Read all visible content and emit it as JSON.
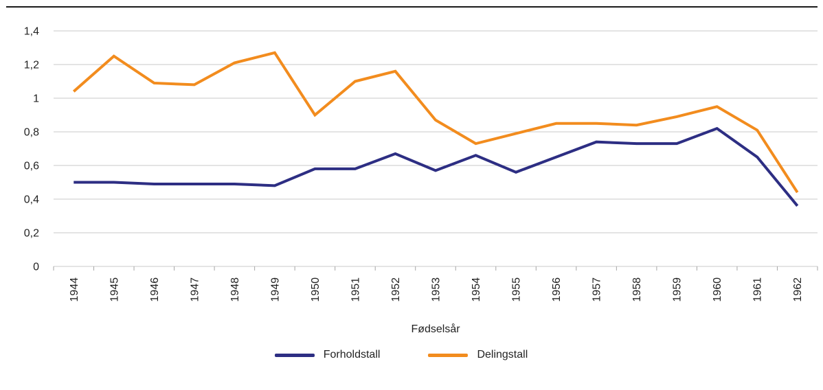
{
  "chart_data": {
    "type": "line",
    "x": [
      1944,
      1945,
      1946,
      1947,
      1948,
      1949,
      1950,
      1951,
      1952,
      1953,
      1954,
      1955,
      1956,
      1957,
      1958,
      1959,
      1960,
      1961,
      1962
    ],
    "series": [
      {
        "name": "Forholdstall",
        "color": "#2d2e83",
        "values": [
          0.5,
          0.5,
          0.49,
          0.49,
          0.49,
          0.48,
          0.58,
          0.58,
          0.67,
          0.57,
          0.66,
          0.56,
          0.65,
          0.74,
          0.73,
          0.73,
          0.82,
          0.65,
          0.36
        ]
      },
      {
        "name": "Delingstall",
        "color": "#f28c1e",
        "values": [
          1.04,
          1.25,
          1.09,
          1.08,
          1.21,
          1.27,
          0.9,
          1.1,
          1.16,
          0.87,
          0.73,
          0.79,
          0.85,
          0.85,
          0.84,
          0.89,
          0.95,
          0.81,
          0.44
        ]
      }
    ],
    "title": "",
    "xlabel": "Fødselsår",
    "ylabel": "",
    "ylim": [
      0,
      1.4
    ],
    "ytick_step": 0.2,
    "ytick_labels": [
      "0",
      "0,2",
      "0,4",
      "0,6",
      "0,8",
      "1",
      "1,2",
      "1,4"
    ],
    "decimal_separator": ",",
    "grid": "horizontal",
    "legend_position": "bottom",
    "x_tick_label_rotation": -90
  },
  "colors": {
    "grid": "#c9c9c9",
    "tick": "#a6a6a6",
    "top_border": "#1a1a1a",
    "text": "#232323"
  }
}
